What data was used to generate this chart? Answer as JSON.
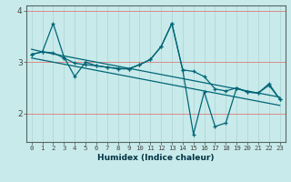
{
  "xlabel": "Humidex (Indice chaleur)",
  "bg_color": "#c8eaea",
  "line_color": "#006677",
  "grid_color_h": "#dd8888",
  "grid_color_v": "#b0d8d8",
  "x": [
    0,
    1,
    2,
    3,
    4,
    5,
    6,
    7,
    8,
    9,
    10,
    11,
    12,
    13,
    14,
    15,
    16,
    17,
    18,
    19,
    20,
    21,
    22,
    23
  ],
  "y_main": [
    3.15,
    3.2,
    3.75,
    3.1,
    2.72,
    3.0,
    2.93,
    2.9,
    2.87,
    2.87,
    2.95,
    3.05,
    3.3,
    3.75,
    2.85,
    1.6,
    2.42,
    1.75,
    1.82,
    2.5,
    2.42,
    2.4,
    2.58,
    2.28
  ],
  "y_smooth": [
    3.15,
    3.2,
    3.18,
    3.08,
    2.98,
    2.95,
    2.93,
    2.9,
    2.88,
    2.87,
    2.95,
    3.05,
    3.3,
    3.75,
    2.85,
    2.82,
    2.72,
    2.48,
    2.44,
    2.5,
    2.42,
    2.4,
    2.55,
    2.28
  ],
  "trend1": [
    3.25,
    3.2,
    3.16,
    3.12,
    3.08,
    3.04,
    3.0,
    2.96,
    2.92,
    2.88,
    2.84,
    2.8,
    2.76,
    2.72,
    2.68,
    2.64,
    2.6,
    2.56,
    2.52,
    2.48,
    2.44,
    2.4,
    2.36,
    2.32
  ],
  "trend2": [
    3.08,
    3.04,
    3.0,
    2.96,
    2.92,
    2.88,
    2.84,
    2.8,
    2.76,
    2.72,
    2.68,
    2.64,
    2.6,
    2.56,
    2.52,
    2.48,
    2.44,
    2.4,
    2.36,
    2.32,
    2.28,
    2.24,
    2.2,
    2.16
  ],
  "ylim": [
    1.45,
    4.1
  ],
  "xlim": [
    -0.5,
    23.5
  ],
  "yticks": [
    2,
    3,
    4
  ],
  "xticks": [
    0,
    1,
    2,
    3,
    4,
    5,
    6,
    7,
    8,
    9,
    10,
    11,
    12,
    13,
    14,
    15,
    16,
    17,
    18,
    19,
    20,
    21,
    22,
    23
  ]
}
